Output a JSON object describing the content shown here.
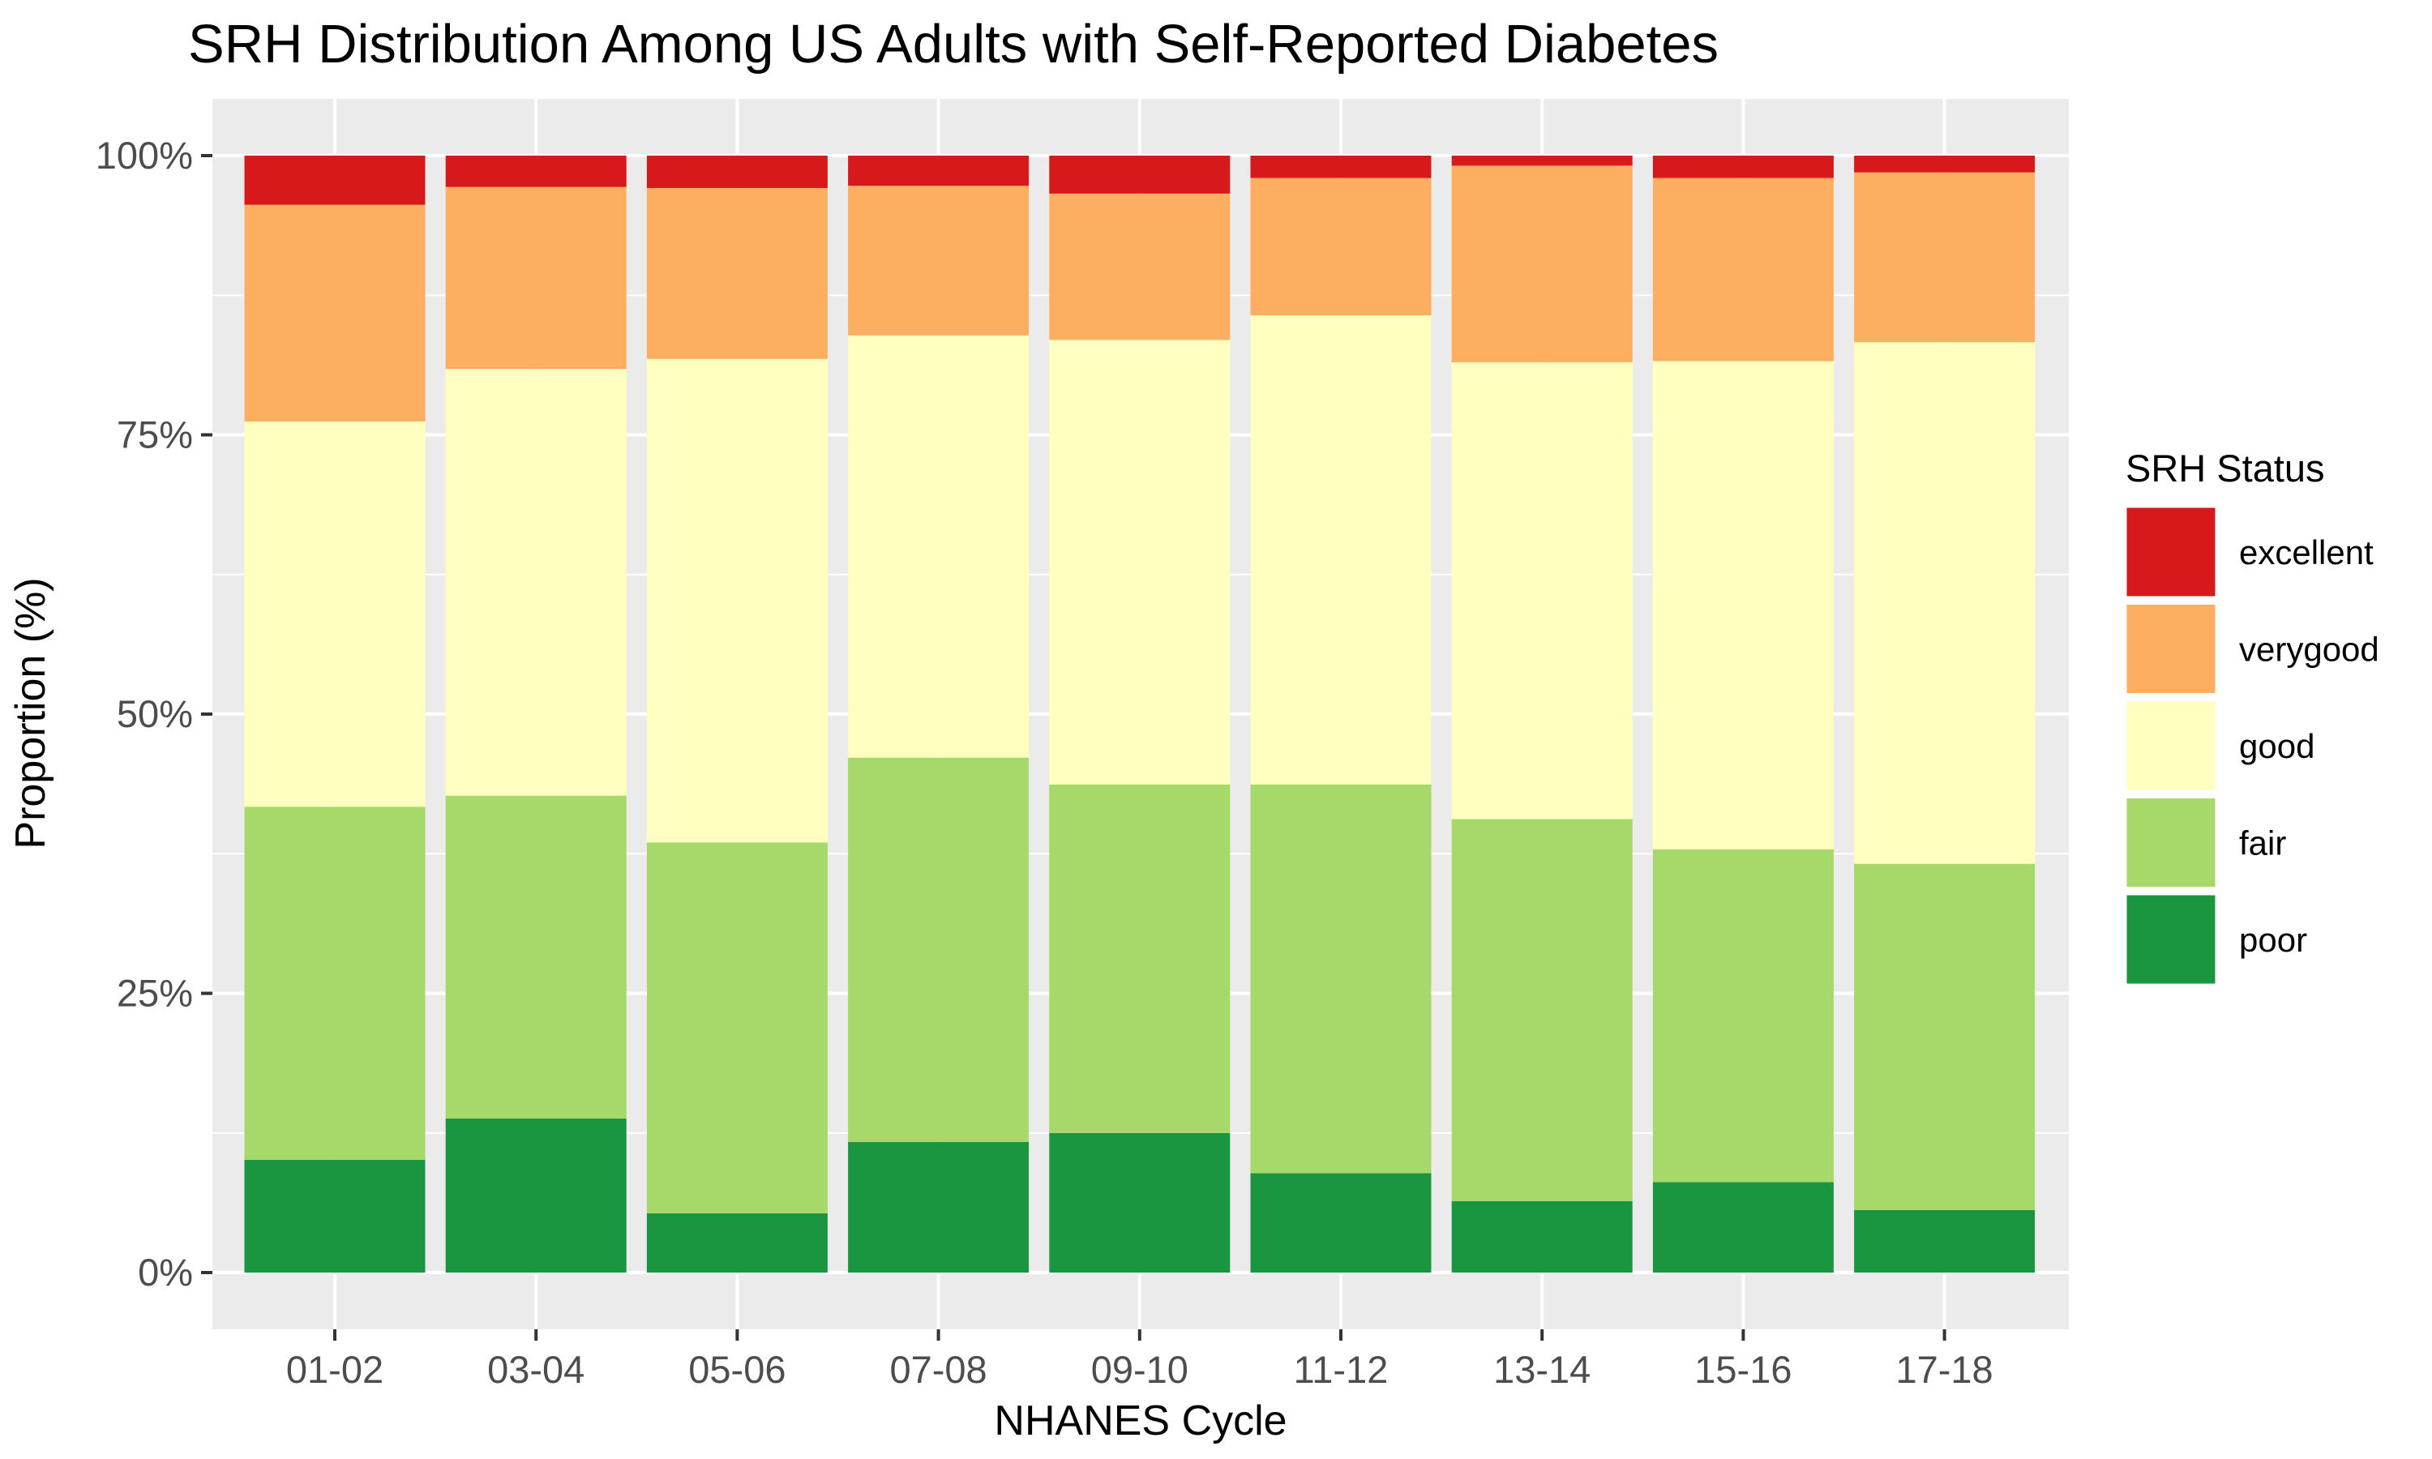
{
  "chart_data": {
    "type": "bar",
    "stacked": true,
    "title": "SRH Distribution Among US Adults with Self-Reported Diabetes",
    "xlabel": "NHANES Cycle",
    "ylabel": "Proportion (%)",
    "ylim": [
      0,
      100
    ],
    "yticks": [
      "0%",
      "25%",
      "50%",
      "75%",
      "100%"
    ],
    "grid": true,
    "legend_title": "SRH Status",
    "legend_position": "right",
    "categories": [
      "01-02",
      "03-04",
      "05-06",
      "07-08",
      "09-10",
      "11-12",
      "13-14",
      "15-16",
      "17-18"
    ],
    "series": [
      {
        "name": "poor",
        "color": "#1a9641",
        "values": [
          10.1,
          13.8,
          5.3,
          11.7,
          12.5,
          8.9,
          6.4,
          8.1,
          5.6
        ]
      },
      {
        "name": "fair",
        "color": "#a6d96a",
        "values": [
          31.6,
          28.9,
          33.2,
          34.4,
          31.2,
          34.8,
          34.2,
          29.8,
          31.0
        ]
      },
      {
        "name": "good",
        "color": "#ffffbf",
        "values": [
          34.5,
          38.2,
          43.3,
          37.8,
          39.8,
          42.0,
          40.9,
          43.7,
          46.7
        ]
      },
      {
        "name": "verygood",
        "color": "#fdae61",
        "values": [
          19.4,
          16.3,
          15.3,
          13.4,
          13.1,
          12.3,
          17.6,
          16.4,
          15.2
        ]
      },
      {
        "name": "excellent",
        "color": "#d7191c",
        "values": [
          4.4,
          2.8,
          2.9,
          2.7,
          3.4,
          2.0,
          0.9,
          2.0,
          1.5
        ]
      }
    ],
    "legend_order": [
      "excellent",
      "verygood",
      "good",
      "fair",
      "poor"
    ],
    "colors": {
      "panel_background": "#ebebeb",
      "gridline": "#ffffff",
      "tick_label": "#4d4d4d"
    }
  }
}
